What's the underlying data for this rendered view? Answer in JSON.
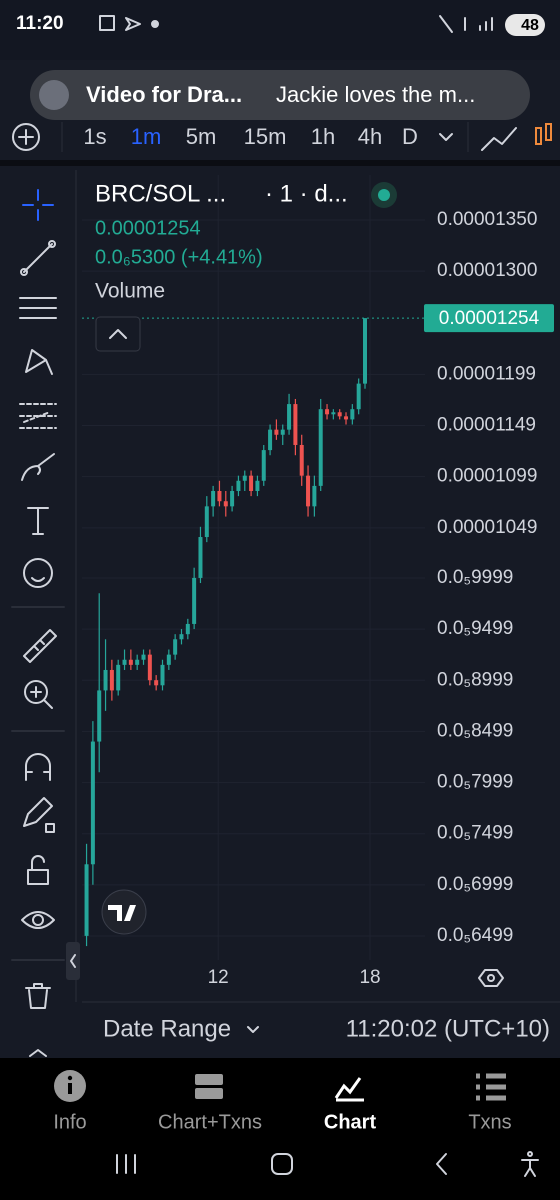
{
  "ui": {
    "status_time": "11:20",
    "battery": "48",
    "notification": {
      "title": "Video for Dra...",
      "text": "Jackie loves the m..."
    },
    "timeframes": [
      "1s",
      "1m",
      "5m",
      "15m",
      "1h",
      "4h",
      "D"
    ],
    "active_timeframe": 1,
    "legend": {
      "symbol": "BRC/SOL ...",
      "interval": "· 1 · d...",
      "price": "0.00001254",
      "change": "0.0₆5300 (+4.41%)",
      "volume": "Volume"
    },
    "date_range": "Date Range",
    "clock": "11:20:02 (UTC+10)",
    "tabs": [
      "Info",
      "Chart+Txns",
      "Chart",
      "Txns"
    ],
    "active_tab": 2
  },
  "chart_data": {
    "type": "candlestick",
    "up_color": "#26a69a",
    "down_color": "#ef5350",
    "grid": true,
    "xlim": [
      6.62,
      20.17
    ],
    "xticks": [
      12,
      18
    ],
    "ylim": [
      6.264e-06,
      1.394e-05
    ],
    "yticks": [
      {
        "value": 1.35e-05,
        "label": "0.00001350"
      },
      {
        "value": 1.3e-05,
        "label": "0.00001300"
      },
      {
        "value": 1.199e-05,
        "label": "0.00001199"
      },
      {
        "value": 1.149e-05,
        "label": "0.00001149"
      },
      {
        "value": 1.099e-05,
        "label": "0.00001099"
      },
      {
        "value": 1.049e-05,
        "label": "0.00001049"
      },
      {
        "value": 9.999e-06,
        "label": "0.0₅9999"
      },
      {
        "value": 9.499e-06,
        "label": "0.0₅9499"
      },
      {
        "value": 8.999e-06,
        "label": "0.0₅8999"
      },
      {
        "value": 8.499e-06,
        "label": "0.0₅8499"
      },
      {
        "value": 7.999e-06,
        "label": "0.0₅7999"
      },
      {
        "value": 7.499e-06,
        "label": "0.0₅7499"
      },
      {
        "value": 6.999e-06,
        "label": "0.0₅6999"
      },
      {
        "value": 6.499e-06,
        "label": "0.0₅6499"
      }
    ],
    "current_price": {
      "value": 1.254e-05,
      "label": "0.00001254"
    },
    "candles": [
      {
        "x": 6.8,
        "open": 6.5e-06,
        "high": 7.4e-06,
        "low": 6.4e-06,
        "close": 7.2e-06
      },
      {
        "x": 7.05,
        "open": 7.2e-06,
        "high": 8.6e-06,
        "low": 7e-06,
        "close": 8.4e-06
      },
      {
        "x": 7.3,
        "open": 8.4e-06,
        "high": 9.85e-06,
        "low": 8.1e-06,
        "close": 8.9e-06
      },
      {
        "x": 7.55,
        "open": 8.9e-06,
        "high": 9.4e-06,
        "low": 8.7e-06,
        "close": 9.1e-06
      },
      {
        "x": 7.8,
        "open": 9.1e-06,
        "high": 9.2e-06,
        "low": 8.8e-06,
        "close": 8.9e-06
      },
      {
        "x": 8.05,
        "open": 8.9e-06,
        "high": 9.2e-06,
        "low": 8.85e-06,
        "close": 9.15e-06
      },
      {
        "x": 8.3,
        "open": 9.15e-06,
        "high": 9.3e-06,
        "low": 9.1e-06,
        "close": 9.2e-06
      },
      {
        "x": 8.55,
        "open": 9.2e-06,
        "high": 9.3e-06,
        "low": 9.1e-06,
        "close": 9.15e-06
      },
      {
        "x": 8.8,
        "open": 9.15e-06,
        "high": 9.25e-06,
        "low": 9.1e-06,
        "close": 9.2e-06
      },
      {
        "x": 9.05,
        "open": 9.2e-06,
        "high": 9.3e-06,
        "low": 9.15e-06,
        "close": 9.25e-06
      },
      {
        "x": 9.3,
        "open": 9.25e-06,
        "high": 9.3e-06,
        "low": 8.95e-06,
        "close": 9e-06
      },
      {
        "x": 9.55,
        "open": 9e-06,
        "high": 9.05e-06,
        "low": 8.9e-06,
        "close": 8.95e-06
      },
      {
        "x": 9.8,
        "open": 8.95e-06,
        "high": 9.2e-06,
        "low": 8.9e-06,
        "close": 9.15e-06
      },
      {
        "x": 10.05,
        "open": 9.15e-06,
        "high": 9.3e-06,
        "low": 9.1e-06,
        "close": 9.25e-06
      },
      {
        "x": 10.3,
        "open": 9.25e-06,
        "high": 9.45e-06,
        "low": 9.2e-06,
        "close": 9.4e-06
      },
      {
        "x": 10.55,
        "open": 9.4e-06,
        "high": 9.5e-06,
        "low": 9.35e-06,
        "close": 9.45e-06
      },
      {
        "x": 10.8,
        "open": 9.45e-06,
        "high": 9.6e-06,
        "low": 9.4e-06,
        "close": 9.55e-06
      },
      {
        "x": 11.05,
        "open": 9.55e-06,
        "high": 1.01e-05,
        "low": 9.5e-06,
        "close": 1e-05
      },
      {
        "x": 11.3,
        "open": 1e-05,
        "high": 1.05e-05,
        "low": 9.95e-06,
        "close": 1.04e-05
      },
      {
        "x": 11.55,
        "open": 1.04e-05,
        "high": 1.08e-05,
        "low": 1.035e-05,
        "close": 1.07e-05
      },
      {
        "x": 11.8,
        "open": 1.07e-05,
        "high": 1.09e-05,
        "low": 1.06e-05,
        "close": 1.085e-05
      },
      {
        "x": 12.05,
        "open": 1.085e-05,
        "high": 1.095e-05,
        "low": 1.07e-05,
        "close": 1.075e-05
      },
      {
        "x": 12.3,
        "open": 1.075e-05,
        "high": 1.085e-05,
        "low": 1.06e-05,
        "close": 1.07e-05
      },
      {
        "x": 12.55,
        "open": 1.07e-05,
        "high": 1.09e-05,
        "low": 1.065e-05,
        "close": 1.085e-05
      },
      {
        "x": 12.8,
        "open": 1.085e-05,
        "high": 1.1e-05,
        "low": 1.08e-05,
        "close": 1.095e-05
      },
      {
        "x": 13.05,
        "open": 1.095e-05,
        "high": 1.105e-05,
        "low": 1.085e-05,
        "close": 1.1e-05
      },
      {
        "x": 13.3,
        "open": 1.1e-05,
        "high": 1.105e-05,
        "low": 1.08e-05,
        "close": 1.085e-05
      },
      {
        "x": 13.55,
        "open": 1.085e-05,
        "high": 1.1e-05,
        "low": 1.08e-05,
        "close": 1.095e-05
      },
      {
        "x": 13.8,
        "open": 1.095e-05,
        "high": 1.13e-05,
        "low": 1.09e-05,
        "close": 1.125e-05
      },
      {
        "x": 14.05,
        "open": 1.125e-05,
        "high": 1.15e-05,
        "low": 1.12e-05,
        "close": 1.145e-05
      },
      {
        "x": 14.3,
        "open": 1.145e-05,
        "high": 1.155e-05,
        "low": 1.135e-05,
        "close": 1.14e-05
      },
      {
        "x": 14.55,
        "open": 1.14e-05,
        "high": 1.15e-05,
        "low": 1.13e-05,
        "close": 1.145e-05
      },
      {
        "x": 14.8,
        "open": 1.145e-05,
        "high": 1.18e-05,
        "low": 1.14e-05,
        "close": 1.17e-05
      },
      {
        "x": 15.05,
        "open": 1.17e-05,
        "high": 1.175e-05,
        "low": 1.12e-05,
        "close": 1.13e-05
      },
      {
        "x": 15.3,
        "open": 1.13e-05,
        "high": 1.14e-05,
        "low": 1.09e-05,
        "close": 1.1e-05
      },
      {
        "x": 15.55,
        "open": 1.1e-05,
        "high": 1.11e-05,
        "low": 1.06e-05,
        "close": 1.07e-05
      },
      {
        "x": 15.8,
        "open": 1.07e-05,
        "high": 1.1e-05,
        "low": 1.06e-05,
        "close": 1.09e-05
      },
      {
        "x": 16.05,
        "open": 1.09e-05,
        "high": 1.175e-05,
        "low": 1.085e-05,
        "close": 1.165e-05
      },
      {
        "x": 16.3,
        "open": 1.165e-05,
        "high": 1.17e-05,
        "low": 1.155e-05,
        "close": 1.16e-05
      },
      {
        "x": 16.55,
        "open": 1.16e-05,
        "high": 1.165e-05,
        "low": 1.155e-05,
        "close": 1.162e-05
      },
      {
        "x": 16.8,
        "open": 1.162e-05,
        "high": 1.165e-05,
        "low": 1.155e-05,
        "close": 1.158e-05
      },
      {
        "x": 17.05,
        "open": 1.158e-05,
        "high": 1.162e-05,
        "low": 1.15e-05,
        "close": 1.155e-05
      },
      {
        "x": 17.3,
        "open": 1.155e-05,
        "high": 1.17e-05,
        "low": 1.15e-05,
        "close": 1.165e-05
      },
      {
        "x": 17.55,
        "open": 1.165e-05,
        "high": 1.195e-05,
        "low": 1.16e-05,
        "close": 1.19e-05
      },
      {
        "x": 17.8,
        "open": 1.19e-05,
        "high": 1.254e-05,
        "low": 1.185e-05,
        "close": 1.254e-05
      }
    ]
  }
}
